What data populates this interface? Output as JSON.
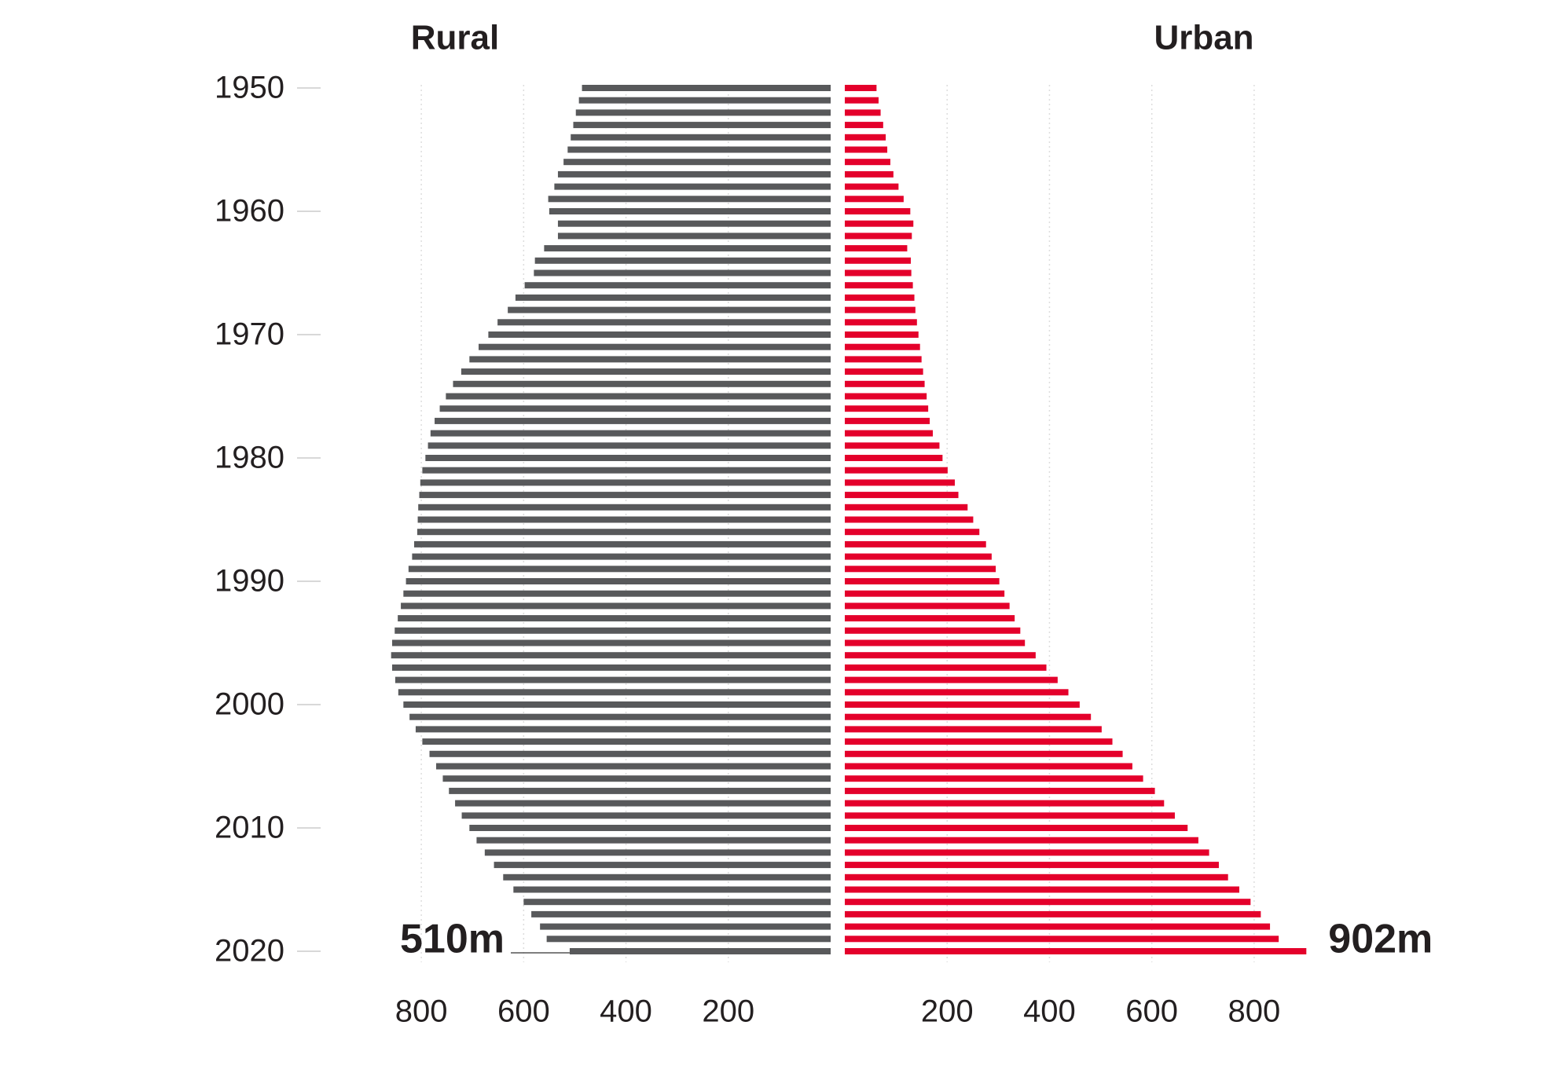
{
  "chart_data": {
    "type": "butterfly",
    "x": [
      1950,
      1951,
      1952,
      1953,
      1954,
      1955,
      1956,
      1957,
      1958,
      1959,
      1960,
      1961,
      1962,
      1963,
      1964,
      1965,
      1966,
      1967,
      1968,
      1969,
      1970,
      1971,
      1972,
      1973,
      1974,
      1975,
      1976,
      1977,
      1978,
      1979,
      1980,
      1981,
      1982,
      1983,
      1984,
      1985,
      1986,
      1987,
      1988,
      1989,
      1990,
      1991,
      1992,
      1993,
      1994,
      1995,
      1996,
      1997,
      1998,
      1999,
      2000,
      2001,
      2002,
      2003,
      2004,
      2005,
      2006,
      2007,
      2008,
      2009,
      2010,
      2011,
      2012,
      2013,
      2014,
      2015,
      2016,
      2017,
      2018,
      2019,
      2020
    ],
    "xticks": [
      1950,
      1960,
      1970,
      1980,
      1990,
      2000,
      2010,
      2020
    ],
    "grid": true,
    "series": [
      {
        "name": "Rural",
        "color": "#58595b",
        "lim": [
          0,
          900
        ],
        "ticks": [
          800,
          600,
          400,
          200
        ],
        "end_label": "510m",
        "values": [
          486,
          492,
          498,
          503,
          508,
          514,
          522,
          533,
          540,
          552,
          550,
          533,
          533,
          560,
          578,
          580,
          598,
          616,
          631,
          651,
          669,
          688,
          706,
          722,
          738,
          752,
          764,
          774,
          782,
          787,
          792,
          798,
          802,
          804,
          806,
          807,
          808,
          814,
          818,
          825,
          830,
          835,
          840,
          846,
          852,
          857,
          859,
          857,
          851,
          845,
          835,
          823,
          811,
          798,
          784,
          771,
          758,
          746,
          734,
          721,
          706,
          692,
          676,
          658,
          640,
          620,
          600,
          585,
          568,
          555,
          510
        ]
      },
      {
        "name": "Urban",
        "color": "#e4002b",
        "lim": [
          0,
          900
        ],
        "ticks": [
          200,
          400,
          600,
          800
        ],
        "end_label": "902m",
        "values": [
          62,
          66,
          70,
          75,
          80,
          83,
          89,
          95,
          105,
          115,
          128,
          134,
          131,
          122,
          129,
          130,
          133,
          136,
          138,
          141,
          144,
          147,
          150,
          153,
          156,
          160,
          163,
          166,
          172,
          185,
          191,
          201,
          215,
          222,
          240,
          251,
          263,
          276,
          287,
          295,
          302,
          312,
          322,
          332,
          343,
          352,
          373,
          394,
          416,
          437,
          459,
          481,
          502,
          523,
          543,
          562,
          583,
          606,
          624,
          645,
          670,
          691,
          712,
          731,
          749,
          771,
          793,
          813,
          831,
          848,
          902
        ]
      }
    ]
  }
}
